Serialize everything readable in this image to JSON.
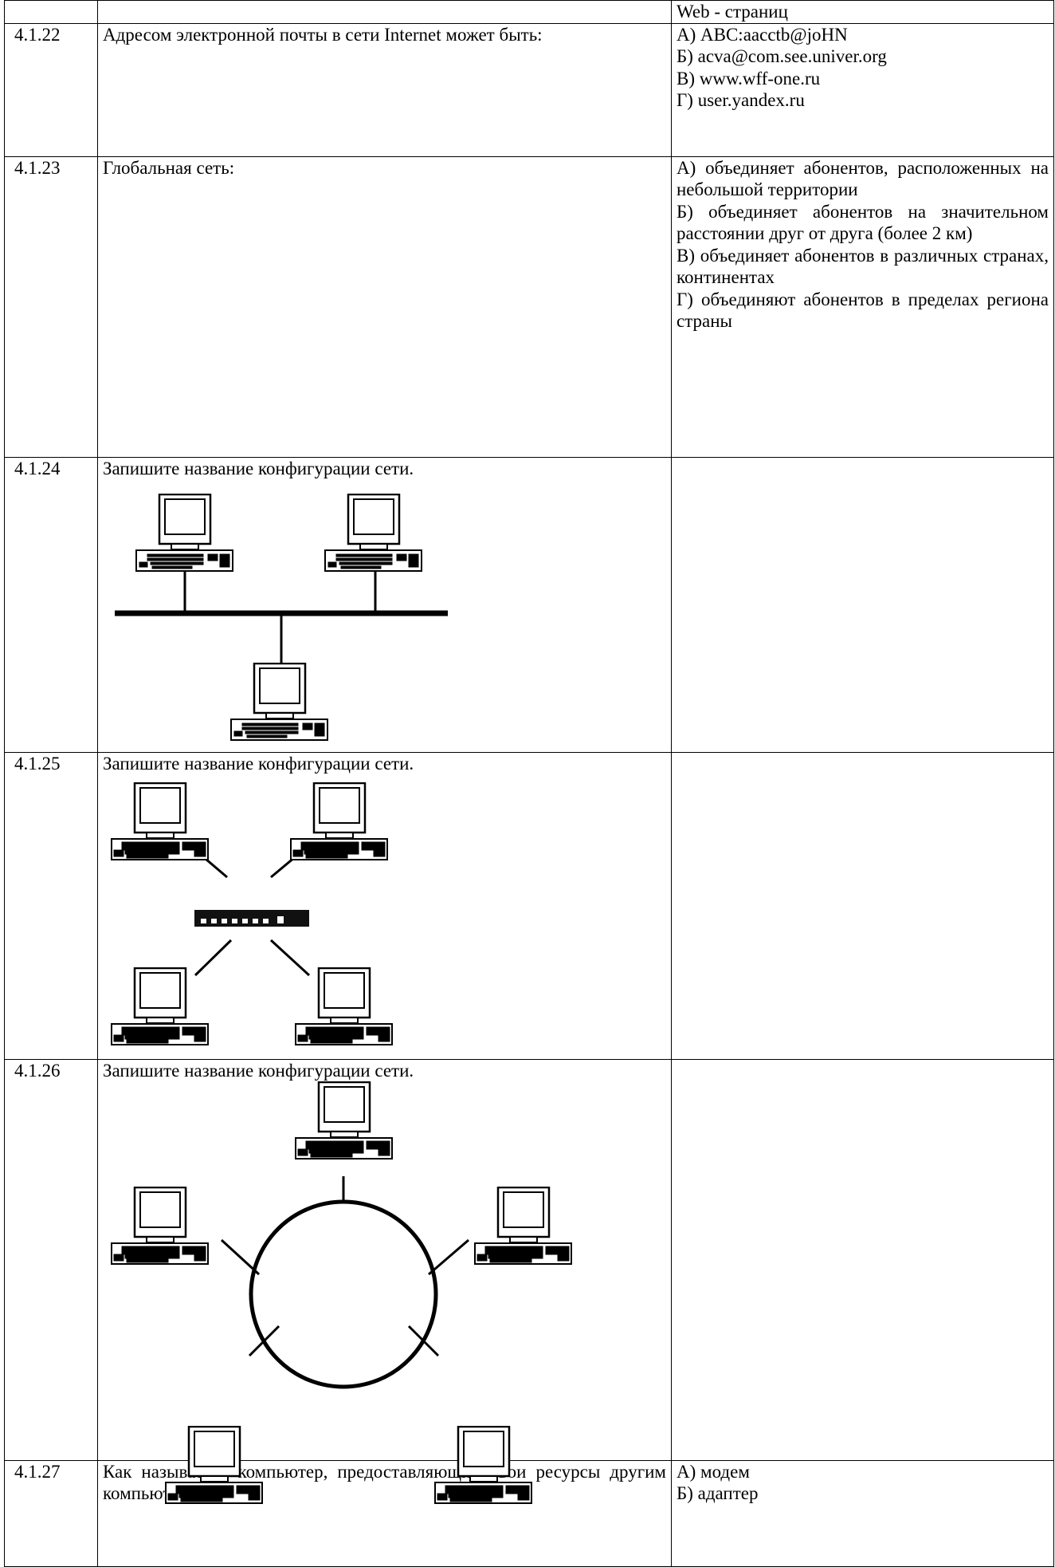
{
  "table": {
    "rows": [
      {
        "number": "",
        "question": "",
        "options": [
          "Web - страниц"
        ]
      },
      {
        "number": "4.1.22",
        "question": "Адресом электронной почты в сети Internet может быть:",
        "options": [
          "А) ABC:aacctb@joHN",
          "Б) acva@com.see.univer.org",
          "В) www.wff-one.ru",
          "Г) user.yandex.ru"
        ]
      },
      {
        "number": "4.1.23",
        "question": "Глобальная сеть:",
        "options": [
          "А) объединяет абонентов, расположенных на небольшой территории",
          "Б) объединяет абонентов на значительном расстоянии друг от друга (более 2 км)",
          "В) объединяет абонентов в различных странах, континентах",
          "Г) объединяют абонентов в пределах региона страны"
        ]
      },
      {
        "number": "4.1.24",
        "question": "Запишите название  конфигурации сети.",
        "options": []
      },
      {
        "number": "4.1.25",
        "question": "Запишите название конфигурации сети.",
        "options": []
      },
      {
        "number": "4.1.26",
        "question": "Запишите название конфигурации сети.",
        "options": []
      },
      {
        "number": "4.1.27",
        "question": "Как называется компьютер, предоставляющий свои ресурсы другим компьютерам?",
        "options": [
          "А) модем",
          "Б) адаптер"
        ]
      }
    ]
  }
}
